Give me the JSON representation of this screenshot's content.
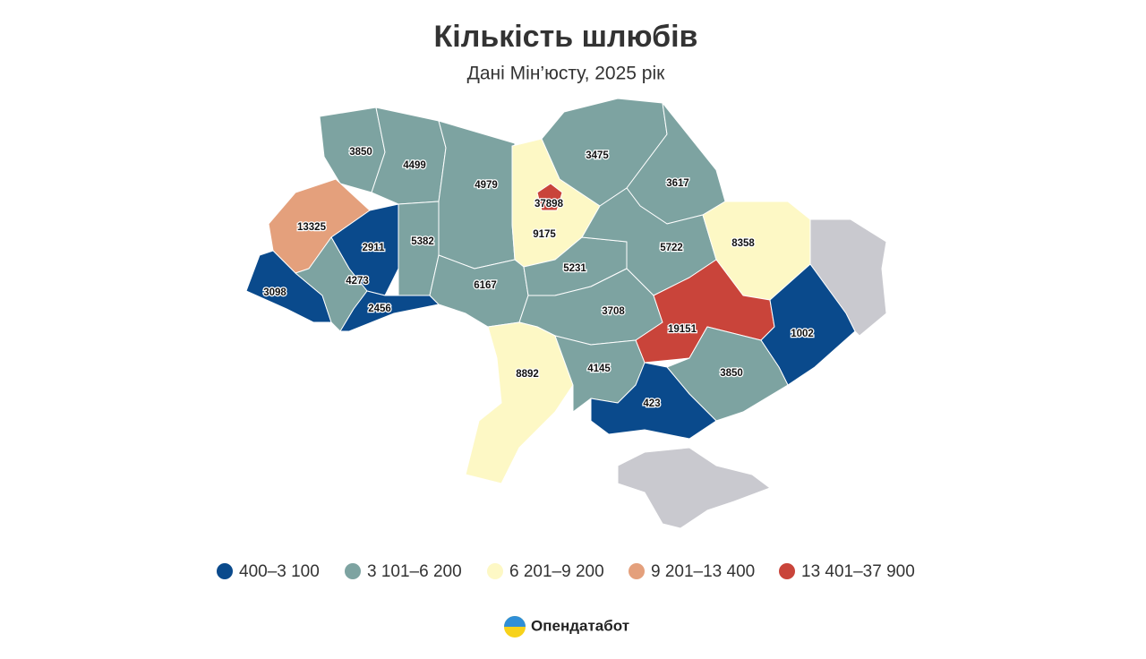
{
  "header": {
    "title": "Кількість шлюбів",
    "subtitle": "Дані Мін’юсту, 2025 рік"
  },
  "regions": [
    {
      "value": 3850,
      "color": "#7da3a1"
    },
    {
      "value": 4499,
      "color": "#7da3a1"
    },
    {
      "value": 4979,
      "color": "#7da3a1"
    },
    {
      "value": 9175,
      "color": "#fdf8c5"
    },
    {
      "value": 37898,
      "color": "#c9443a"
    },
    {
      "value": 3475,
      "color": "#7da3a1"
    },
    {
      "value": 3617,
      "color": "#7da3a1"
    },
    {
      "value": 13325,
      "color": "#e4a07c"
    },
    {
      "value": 2911,
      "color": "#0a4a8c"
    },
    {
      "value": 5382,
      "color": "#7da3a1"
    },
    {
      "value": 3098,
      "color": "#0a4a8c"
    },
    {
      "value": 4273,
      "color": "#7da3a1"
    },
    {
      "value": 2456,
      "color": "#0a4a8c"
    },
    {
      "value": 6167,
      "color": "#7da3a1"
    },
    {
      "value": 5231,
      "color": "#7da3a1"
    },
    {
      "value": 5722,
      "color": "#7da3a1"
    },
    {
      "value": 8358,
      "color": "#fdf8c5"
    },
    {
      "value": 3708,
      "color": "#7da3a1"
    },
    {
      "value": 19151,
      "color": "#c9443a"
    },
    {
      "value": 1002,
      "color": "#0a4a8c"
    },
    {
      "value": 8892,
      "color": "#fdf8c5"
    },
    {
      "value": 4145,
      "color": "#7da3a1"
    },
    {
      "value": 3850,
      "color": "#7da3a1"
    },
    {
      "value": 423,
      "color": "#0a4a8c"
    }
  ],
  "legend": [
    {
      "label": "400–3 100",
      "color": "#0a4a8c"
    },
    {
      "label": "3 101–6 200",
      "color": "#7da3a1"
    },
    {
      "label": "6 201–9 200",
      "color": "#fdf8c5"
    },
    {
      "label": "9 201–13 400",
      "color": "#e4a07c"
    },
    {
      "label": "13 401–37 900",
      "color": "#c9443a"
    }
  ],
  "footer": {
    "brand": "Опендатабот"
  }
}
